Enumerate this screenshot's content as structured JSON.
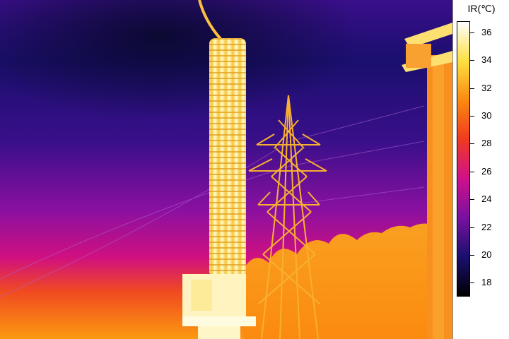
{
  "legend": {
    "title": "IR(℃)",
    "min": 17,
    "max": 36.8,
    "ticks": [
      "36",
      "34",
      "32",
      "30",
      "28",
      "26",
      "24",
      "22",
      "20",
      "18"
    ],
    "tick_values": [
      36,
      34,
      32,
      30,
      28,
      26,
      24,
      22,
      20,
      18
    ]
  },
  "palette": {
    "black": "#000000",
    "navy": "#1a0f6e",
    "purple": "#7a10a0",
    "magenta": "#d0108a",
    "red": "#f03a20",
    "orange": "#fb8a10",
    "yellow": "#fde040",
    "white": "#ffffff"
  }
}
